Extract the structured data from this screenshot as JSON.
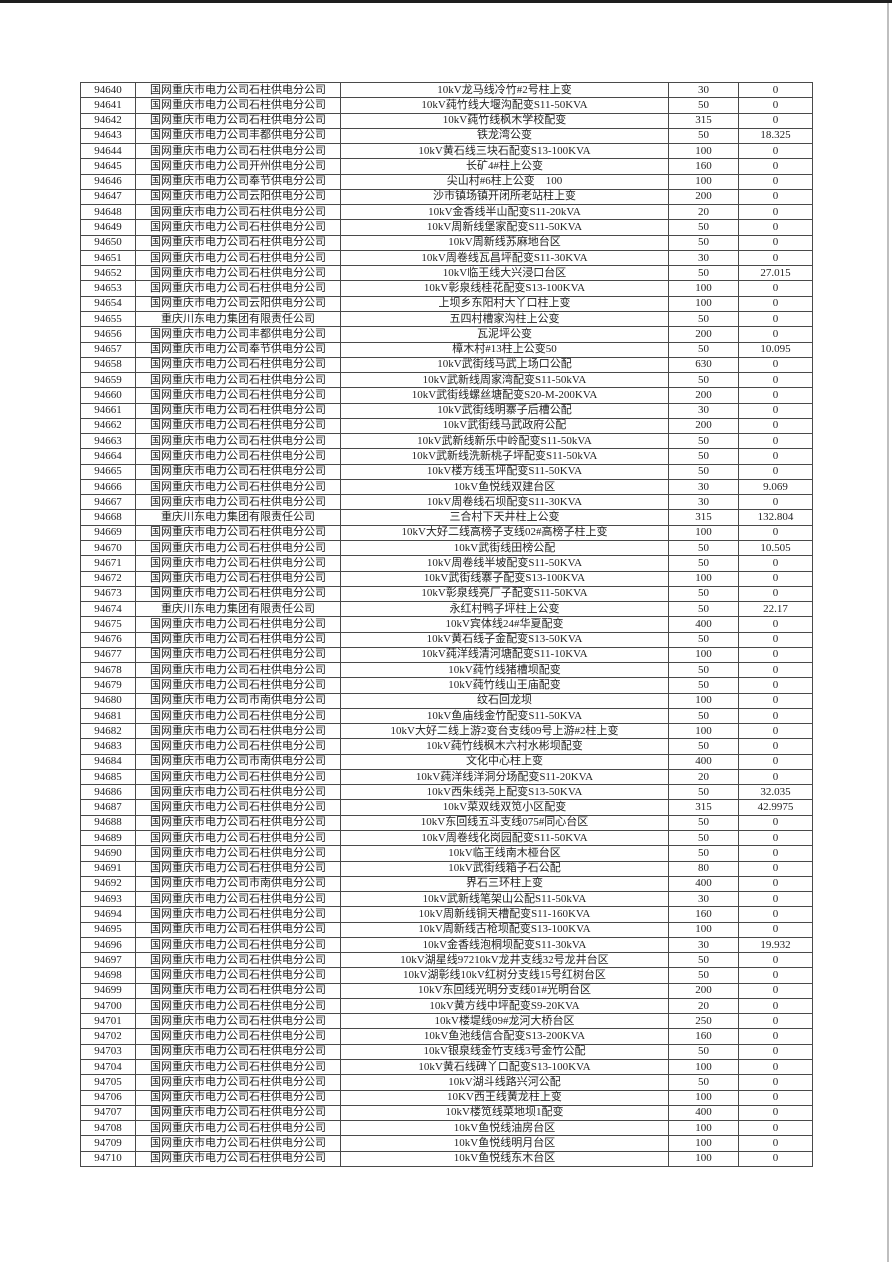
{
  "page": {
    "top_rule_color": "#1e1e1e",
    "right_rule_color": "#bfbfbf",
    "background": "#ffffff"
  },
  "table": {
    "column_names": [
      "id",
      "company",
      "device",
      "capacity",
      "loss"
    ],
    "rows": [
      [
        "94640",
        "国网重庆市电力公司石柱供电分公司",
        "10kV龙马线冷竹#2号柱上变",
        "30",
        "0"
      ],
      [
        "94641",
        "国网重庆市电力公司石柱供电分公司",
        "10kV莼竹线大堰沟配变S11-50KVA",
        "50",
        "0"
      ],
      [
        "94642",
        "国网重庆市电力公司石柱供电分公司",
        "10kV莼竹线枫木学校配变",
        "315",
        "0"
      ],
      [
        "94643",
        "国网重庆市电力公司丰都供电分公司",
        "铁龙湾公变",
        "50",
        "18.325"
      ],
      [
        "94644",
        "国网重庆市电力公司石柱供电分公司",
        "10kV黄石线三块石配变S13-100KVA",
        "100",
        "0"
      ],
      [
        "94645",
        "国网重庆市电力公司开州供电分公司",
        "长矿4#柱上公变",
        "160",
        "0"
      ],
      [
        "94646",
        "国网重庆市电力公司奉节供电分公司",
        "尖山村#6柱上公变　100",
        "100",
        "0"
      ],
      [
        "94647",
        "国网重庆市电力公司云阳供电分公司",
        "沙市镇场镇开闭所老站柱上变",
        "200",
        "0"
      ],
      [
        "94648",
        "国网重庆市电力公司石柱供电分公司",
        "10kV金香线半山配变S11-20kVA",
        "20",
        "0"
      ],
      [
        "94649",
        "国网重庆市电力公司石柱供电分公司",
        "10kV周新线堡家配变S11-50KVA",
        "50",
        "0"
      ],
      [
        "94650",
        "国网重庆市电力公司石柱供电分公司",
        "10kV周新线苏麻地台区",
        "50",
        "0"
      ],
      [
        "94651",
        "国网重庆市电力公司石柱供电分公司",
        "10kV周卷线瓦昌坪配变S11-30KVA",
        "30",
        "0"
      ],
      [
        "94652",
        "国网重庆市电力公司石柱供电分公司",
        "10kV临王线大兴浸口台区",
        "50",
        "27.015"
      ],
      [
        "94653",
        "国网重庆市电力公司石柱供电分公司",
        "10kV彰泉线桂花配变S13-100KVA",
        "100",
        "0"
      ],
      [
        "94654",
        "国网重庆市电力公司云阳供电分公司",
        "上坝乡东阳村大丫口柱上变",
        "100",
        "0"
      ],
      [
        "94655",
        "重庆川东电力集团有限责任公司",
        "五四村槽家沟柱上公变",
        "50",
        "0"
      ],
      [
        "94656",
        "国网重庆市电力公司丰都供电分公司",
        "瓦泥坪公变",
        "200",
        "0"
      ],
      [
        "94657",
        "国网重庆市电力公司奉节供电分公司",
        "樟木村#13柱上公变50",
        "50",
        "10.095"
      ],
      [
        "94658",
        "国网重庆市电力公司石柱供电分公司",
        "10kV武街线马武上场口公配",
        "630",
        "0"
      ],
      [
        "94659",
        "国网重庆市电力公司石柱供电分公司",
        "10kV武新线周家湾配变S11-50kVA",
        "50",
        "0"
      ],
      [
        "94660",
        "国网重庆市电力公司石柱供电分公司",
        "10kV武街线螺丝塘配变S20-M-200KVA",
        "200",
        "0"
      ],
      [
        "94661",
        "国网重庆市电力公司石柱供电分公司",
        "10kV武街线明寨子后槽公配",
        "30",
        "0"
      ],
      [
        "94662",
        "国网重庆市电力公司石柱供电分公司",
        "10kV武街线马武政府公配",
        "200",
        "0"
      ],
      [
        "94663",
        "国网重庆市电力公司石柱供电分公司",
        "10kV武新线新乐中岭配变S11-50kVA",
        "50",
        "0"
      ],
      [
        "94664",
        "国网重庆市电力公司石柱供电分公司",
        "10kV武新线洗新桃子坪配变S11-50kVA",
        "50",
        "0"
      ],
      [
        "94665",
        "国网重庆市电力公司石柱供电分公司",
        "10kV楼方线玉坪配变S11-50KVA",
        "50",
        "0"
      ],
      [
        "94666",
        "国网重庆市电力公司石柱供电分公司",
        "10kV鱼悦线双建台区",
        "30",
        "9.069"
      ],
      [
        "94667",
        "国网重庆市电力公司石柱供电分公司",
        "10kV周卷线石坝配变S11-30KVA",
        "30",
        "0"
      ],
      [
        "94668",
        "重庆川东电力集团有限责任公司",
        "三合村下天井柱上公变",
        "315",
        "132.804"
      ],
      [
        "94669",
        "国网重庆市电力公司石柱供电分公司",
        "10kV大好二线高榜子支线02#高榜子柱上变",
        "100",
        "0"
      ],
      [
        "94670",
        "国网重庆市电力公司石柱供电分公司",
        "10kV武街线田榜公配",
        "50",
        "10.505"
      ],
      [
        "94671",
        "国网重庆市电力公司石柱供电分公司",
        "10kV周卷线半坡配变S11-50KVA",
        "50",
        "0"
      ],
      [
        "94672",
        "国网重庆市电力公司石柱供电分公司",
        "10kV武街线寨子配变S13-100KVA",
        "100",
        "0"
      ],
      [
        "94673",
        "国网重庆市电力公司石柱供电分公司",
        "10kV彰泉线亮厂子配变S11-50KVA",
        "50",
        "0"
      ],
      [
        "94674",
        "重庆川东电力集团有限责任公司",
        "永红村鸭子坪柱上公变",
        "50",
        "22.17"
      ],
      [
        "94675",
        "国网重庆市电力公司石柱供电分公司",
        "10kV宾体线24#华夏配变",
        "400",
        "0"
      ],
      [
        "94676",
        "国网重庆市电力公司石柱供电分公司",
        "10kV黄石线子金配变S13-50KVA",
        "50",
        "0"
      ],
      [
        "94677",
        "国网重庆市电力公司石柱供电分公司",
        "10kV莼洋线清河塘配变S11-10KVA",
        "100",
        "0"
      ],
      [
        "94678",
        "国网重庆市电力公司石柱供电分公司",
        "10kV莼竹线猪槽坝配变",
        "50",
        "0"
      ],
      [
        "94679",
        "国网重庆市电力公司石柱供电分公司",
        "10kV莼竹线山王庙配变",
        "50",
        "0"
      ],
      [
        "94680",
        "国网重庆市电力公司市南供电分公司",
        "纹石回龙坝",
        "100",
        "0"
      ],
      [
        "94681",
        "国网重庆市电力公司石柱供电分公司",
        "10kV鱼庙线金竹配变S11-50KVA",
        "50",
        "0"
      ],
      [
        "94682",
        "国网重庆市电力公司石柱供电分公司",
        "10kV大好二线上游2变台支线09号上游#2柱上变",
        "100",
        "0"
      ],
      [
        "94683",
        "国网重庆市电力公司石柱供电分公司",
        "10kV莼竹线枫木六村水彬坝配变",
        "50",
        "0"
      ],
      [
        "94684",
        "国网重庆市电力公司市南供电分公司",
        "文化中心柱上变",
        "400",
        "0"
      ],
      [
        "94685",
        "国网重庆市电力公司石柱供电分公司",
        "10kV莼洋线洋洞分场配变S11-20KVA",
        "20",
        "0"
      ],
      [
        "94686",
        "国网重庆市电力公司石柱供电分公司",
        "10kV西朱线尧上配变S13-50KVA",
        "50",
        "32.035"
      ],
      [
        "94687",
        "国网重庆市电力公司石柱供电分公司",
        "10kV菜双线双笕小区配变",
        "315",
        "42.9975"
      ],
      [
        "94688",
        "国网重庆市电力公司石柱供电分公司",
        "10kV东回线五斗支线075#同心台区",
        "50",
        "0"
      ],
      [
        "94689",
        "国网重庆市电力公司石柱供电分公司",
        "10kV周卷线化岗园配变S11-50KVA",
        "50",
        "0"
      ],
      [
        "94690",
        "国网重庆市电力公司石柱供电分公司",
        "10kV临王线南木桠台区",
        "50",
        "0"
      ],
      [
        "94691",
        "国网重庆市电力公司石柱供电分公司",
        "10kV武街线箱子石公配",
        "80",
        "0"
      ],
      [
        "94692",
        "国网重庆市电力公司市南供电分公司",
        "界石三环柱上变",
        "400",
        "0"
      ],
      [
        "94693",
        "国网重庆市电力公司石柱供电分公司",
        "10kV武新线笔架山公配S11-50kVA",
        "30",
        "0"
      ],
      [
        "94694",
        "国网重庆市电力公司石柱供电分公司",
        "10kV周新线铜天槽配变S11-160KVA",
        "160",
        "0"
      ],
      [
        "94695",
        "国网重庆市电力公司石柱供电分公司",
        "10kV周新线古枪坝配变S13-100KVA",
        "100",
        "0"
      ],
      [
        "94696",
        "国网重庆市电力公司石柱供电分公司",
        "10kV金香线泡桐坝配变S11-30kVA",
        "30",
        "19.932"
      ],
      [
        "94697",
        "国网重庆市电力公司石柱供电分公司",
        "10kV湖星线97210kV龙井支线32号龙井台区",
        "50",
        "0"
      ],
      [
        "94698",
        "国网重庆市电力公司石柱供电分公司",
        "10kV湖彰线10kV红树分支线15号红树台区",
        "50",
        "0"
      ],
      [
        "94699",
        "国网重庆市电力公司石柱供电分公司",
        "10kV东回线光明分支线01#光明台区",
        "200",
        "0"
      ],
      [
        "94700",
        "国网重庆市电力公司石柱供电分公司",
        "10kV黄方线中坪配变S9-20KVA",
        "20",
        "0"
      ],
      [
        "94701",
        "国网重庆市电力公司石柱供电分公司",
        "10kV楼堤线09#龙河大桥台区",
        "250",
        "0"
      ],
      [
        "94702",
        "国网重庆市电力公司石柱供电分公司",
        "10kV鱼池线信合配变S13-200KVA",
        "160",
        "0"
      ],
      [
        "94703",
        "国网重庆市电力公司石柱供电分公司",
        "10kV银泉线金竹支线3号金竹公配",
        "50",
        "0"
      ],
      [
        "94704",
        "国网重庆市电力公司石柱供电分公司",
        "10kV黄石线碑丫口配变S13-100KVA",
        "100",
        "0"
      ],
      [
        "94705",
        "国网重庆市电力公司石柱供电分公司",
        "10kV湖斗线路兴河公配",
        "50",
        "0"
      ],
      [
        "94706",
        "国网重庆市电力公司石柱供电分公司",
        "10KV西王线黄龙柱上变",
        "100",
        "0"
      ],
      [
        "94707",
        "国网重庆市电力公司石柱供电分公司",
        "10kV楼笕线菜地坝1配变",
        "400",
        "0"
      ],
      [
        "94708",
        "国网重庆市电力公司石柱供电分公司",
        "10kV鱼悦线油房台区",
        "100",
        "0"
      ],
      [
        "94709",
        "国网重庆市电力公司石柱供电分公司",
        "10kV鱼悦线明月台区",
        "100",
        "0"
      ],
      [
        "94710",
        "国网重庆市电力公司石柱供电分公司",
        "10kV鱼悦线东木台区",
        "100",
        "0"
      ]
    ]
  }
}
